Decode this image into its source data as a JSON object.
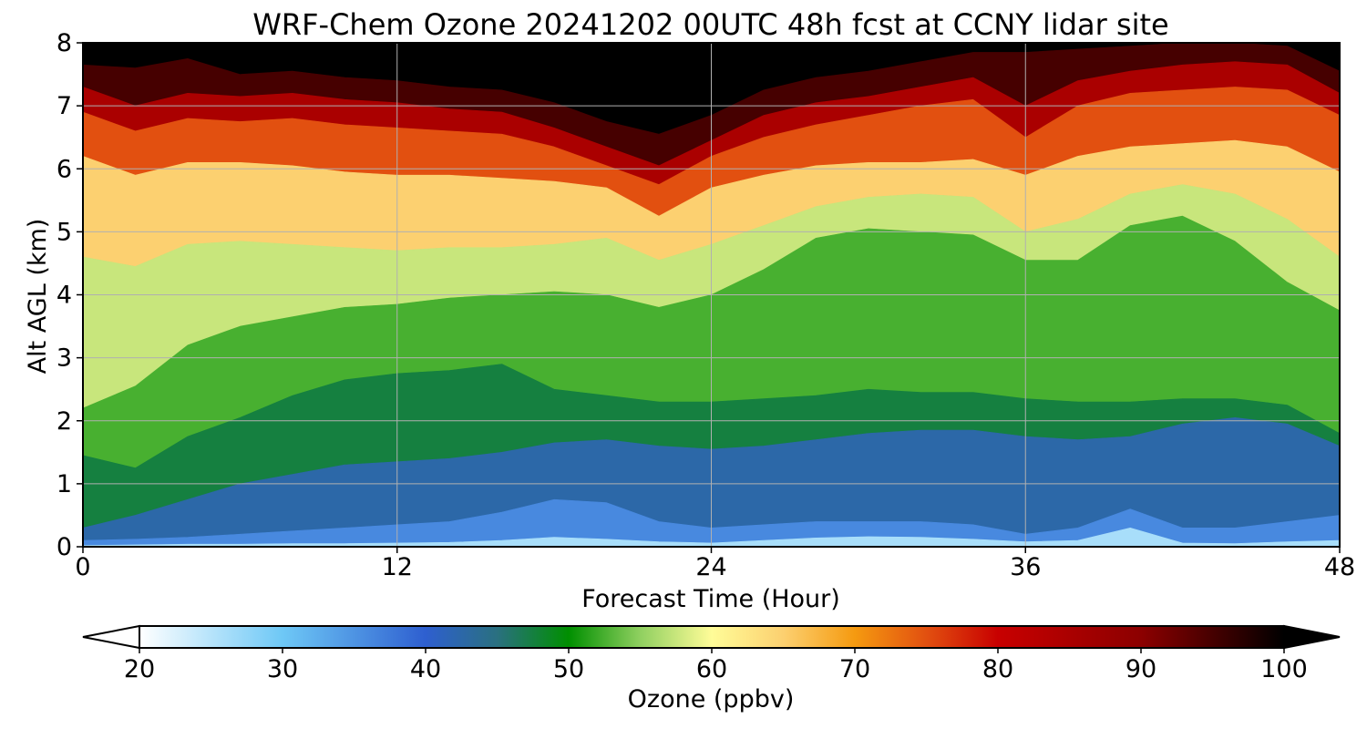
{
  "chart_data": {
    "type": "heatmap",
    "title": "WRF-Chem Ozone  20241202 00UTC 48h fcst at CCNY lidar site",
    "xlabel": "Forecast Time (Hour)",
    "ylabel": "Alt AGL (km)",
    "xlim": [
      0,
      48
    ],
    "ylim": [
      0,
      8
    ],
    "x_ticks": [
      "0",
      "12",
      "24",
      "36",
      "48"
    ],
    "y_ticks": [
      "0",
      "1",
      "2",
      "3",
      "4",
      "5",
      "6",
      "7",
      "8"
    ],
    "grid": true,
    "colorbar": {
      "label": "Ozone  (ppbv)",
      "range": [
        20,
        100
      ],
      "ticks": [
        "20",
        "30",
        "40",
        "50",
        "60",
        "70",
        "80",
        "90",
        "100"
      ],
      "extend": "both",
      "colors": {
        "under": "#ffffff",
        "c20": "#ffffff",
        "c30": "#6ec8f6",
        "c40": "#2e5fd0",
        "c45": "#2a7080",
        "c50": "#008f00",
        "c55": "#90d060",
        "c60": "#fffc98",
        "c65": "#fcd070",
        "c70": "#f59a10",
        "c75": "#e25010",
        "c80": "#c80000",
        "c90": "#8c0000",
        "c100": "#000000",
        "over": "#000000"
      }
    },
    "x_hours": [
      0,
      2,
      4,
      6,
      8,
      10,
      12,
      14,
      16,
      18,
      20,
      22,
      24,
      26,
      28,
      30,
      32,
      34,
      36,
      38,
      40,
      42,
      44,
      46,
      48
    ],
    "levels": [
      {
        "ozone": 100,
        "height_km": [
          7.65,
          7.6,
          7.75,
          7.5,
          7.55,
          7.45,
          7.4,
          7.3,
          7.25,
          7.05,
          6.75,
          6.55,
          6.85,
          7.25,
          7.45,
          7.55,
          7.7,
          7.85,
          7.85,
          7.9,
          7.95,
          8.0,
          8.0,
          7.95,
          7.55
        ]
      },
      {
        "ozone": 90,
        "height_km": [
          7.3,
          7.0,
          7.2,
          7.15,
          7.2,
          7.1,
          7.05,
          6.95,
          6.9,
          6.65,
          6.35,
          6.05,
          6.45,
          6.85,
          7.05,
          7.15,
          7.3,
          7.45,
          7.0,
          7.4,
          7.55,
          7.65,
          7.7,
          7.65,
          7.2
        ]
      },
      {
        "ozone": 80,
        "height_km": [
          6.9,
          6.6,
          6.8,
          6.75,
          6.8,
          6.7,
          6.65,
          6.6,
          6.55,
          6.35,
          6.05,
          5.75,
          6.2,
          6.5,
          6.7,
          6.85,
          7.0,
          7.1,
          6.5,
          7.0,
          7.2,
          7.25,
          7.3,
          7.25,
          6.85
        ]
      },
      {
        "ozone": 70,
        "height_km": [
          6.2,
          5.9,
          6.1,
          6.1,
          6.05,
          5.95,
          5.9,
          5.9,
          5.85,
          5.8,
          5.7,
          5.25,
          5.7,
          5.9,
          6.05,
          6.1,
          6.1,
          6.15,
          5.9,
          6.2,
          6.35,
          6.4,
          6.45,
          6.35,
          5.95
        ]
      },
      {
        "ozone": 60,
        "height_km": [
          4.6,
          4.45,
          4.8,
          4.85,
          4.8,
          4.75,
          4.7,
          4.75,
          4.75,
          4.8,
          4.9,
          4.55,
          4.8,
          5.1,
          5.4,
          5.55,
          5.6,
          5.55,
          5.0,
          5.2,
          5.6,
          5.75,
          5.6,
          5.2,
          4.6
        ]
      },
      {
        "ozone": 55,
        "height_km": [
          2.2,
          2.55,
          3.2,
          3.5,
          3.65,
          3.8,
          3.85,
          3.95,
          4.0,
          4.05,
          4.0,
          3.8,
          4.0,
          4.4,
          4.9,
          5.05,
          5.0,
          4.95,
          4.55,
          4.55,
          5.1,
          5.25,
          4.85,
          4.2,
          3.75
        ]
      },
      {
        "ozone": 50,
        "height_km": [
          1.45,
          1.25,
          1.75,
          2.05,
          2.4,
          2.65,
          2.75,
          2.8,
          2.9,
          2.5,
          2.4,
          2.3,
          2.3,
          2.35,
          2.4,
          2.5,
          2.45,
          2.45,
          2.35,
          2.3,
          2.3,
          2.35,
          2.35,
          2.25,
          1.8
        ]
      },
      {
        "ozone": 45,
        "height_km": [
          0.3,
          0.5,
          0.75,
          1.0,
          1.15,
          1.3,
          1.35,
          1.4,
          1.5,
          1.65,
          1.7,
          1.6,
          1.55,
          1.6,
          1.7,
          1.8,
          1.85,
          1.85,
          1.75,
          1.7,
          1.75,
          1.95,
          2.05,
          1.95,
          1.6
        ]
      },
      {
        "ozone": 40,
        "height_km": [
          0.1,
          0.12,
          0.15,
          0.2,
          0.25,
          0.3,
          0.35,
          0.4,
          0.55,
          0.75,
          0.7,
          0.4,
          0.3,
          0.35,
          0.4,
          0.4,
          0.4,
          0.35,
          0.2,
          0.3,
          0.6,
          0.3,
          0.3,
          0.4,
          0.5
        ]
      },
      {
        "ozone": 32,
        "height_km": [
          0.02,
          0.03,
          0.04,
          0.04,
          0.05,
          0.05,
          0.06,
          0.07,
          0.1,
          0.15,
          0.12,
          0.08,
          0.06,
          0.1,
          0.14,
          0.16,
          0.15,
          0.12,
          0.08,
          0.1,
          0.3,
          0.06,
          0.05,
          0.08,
          0.1
        ]
      }
    ]
  }
}
